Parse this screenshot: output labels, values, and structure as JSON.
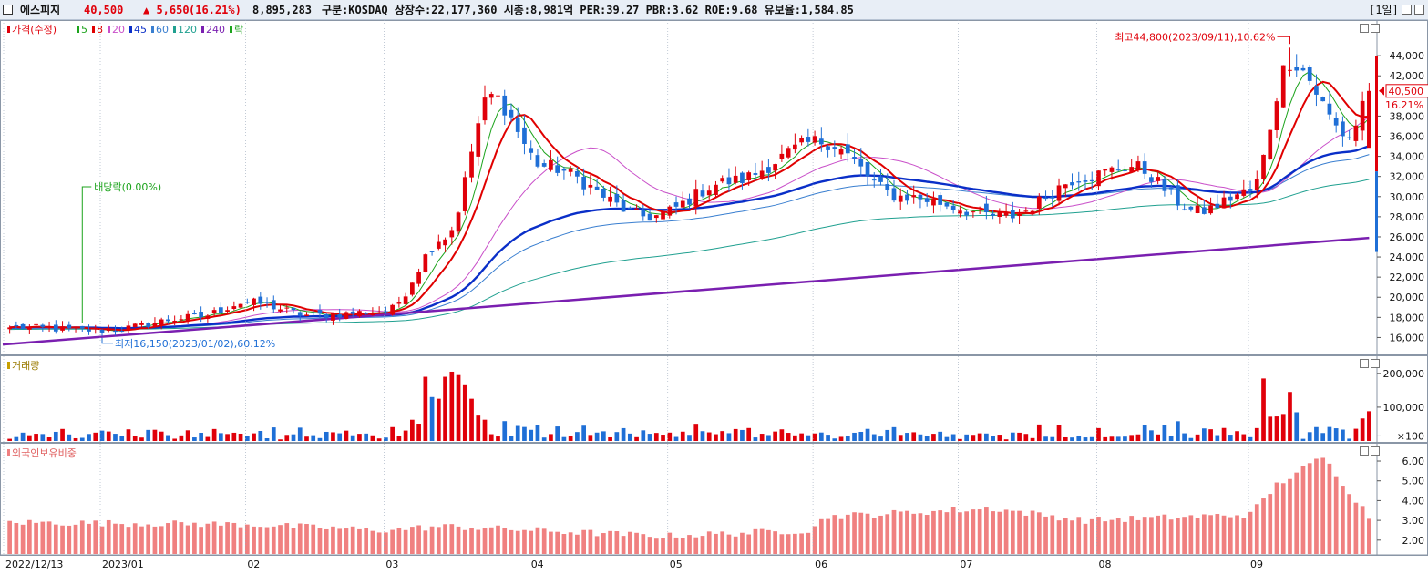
{
  "header": {
    "name": "에스피지",
    "price": "40,500",
    "change": "▲ 5,650",
    "change_pct": "(16.21%)",
    "volume": "8,895,283",
    "info": "구분:KOSDAQ 상장수:22,177,360 시총:8,981억 PER:39.27 PBR:3.62 ROE:9.68 유보율:1,584.85",
    "period": "[1일]"
  },
  "colors": {
    "up": "#e0000a",
    "down": "#1f6fd6",
    "ma5": "#1ca31c",
    "ma8": "#e00000",
    "ma20": "#c94fc9",
    "ma45": "#0a2fc8",
    "ma60": "#3a7fd0",
    "ma120": "#20a090",
    "ma240": "#7a1fb0",
    "foreign": "#f08080"
  },
  "legends": {
    "price": [
      {
        "text": "가격(수정)",
        "color": "#e0000a"
      },
      {
        "text": "5",
        "color": "#1ca31c"
      },
      {
        "text": "8",
        "color": "#e00000"
      },
      {
        "text": "20",
        "color": "#c94fc9"
      },
      {
        "text": "45",
        "color": "#0a2fc8"
      },
      {
        "text": "60",
        "color": "#3a7fd0"
      },
      {
        "text": "120",
        "color": "#20a090"
      },
      {
        "text": "240",
        "color": "#7a1fb0"
      },
      {
        "text": "락",
        "color": "#1ca31c"
      }
    ],
    "volume": "거래량",
    "foreign": "외국인보유비중"
  },
  "annotations": {
    "high": "최고44,800(2023/09/11),10.62%",
    "low": "최저16,150(2023/01/02),60.12%",
    "dividend": "배당락(0.00%)",
    "last_price": "40,500",
    "last_pct": "16.21%"
  },
  "chart_data": [
    {
      "type": "candlestick",
      "panel": "price",
      "ylim": [
        14500,
        47000
      ],
      "yticks": [
        "16,000",
        "18,000",
        "20,000",
        "22,000",
        "24,000",
        "26,000",
        "28,000",
        "30,000",
        "32,000",
        "34,000",
        "36,000",
        "38,000",
        "42,000",
        "44,000"
      ],
      "anchors": [
        {
          "date": "2022/12/13",
          "close": 17000
        },
        {
          "date": "2023/01/02",
          "close": 16700
        },
        {
          "date": "2023/01/20",
          "close": 18000
        },
        {
          "date": "2023/02/01",
          "close": 19500
        },
        {
          "date": "2023/02/15",
          "close": 18200
        },
        {
          "date": "2023/03/02",
          "close": 18600
        },
        {
          "date": "2023/03/15",
          "close": 26000
        },
        {
          "date": "2023/03/24",
          "close": 40000
        },
        {
          "date": "2023/04/05",
          "close": 33000
        },
        {
          "date": "2023/04/27",
          "close": 28000
        },
        {
          "date": "2023/05/15",
          "close": 31500
        },
        {
          "date": "2023/06/02",
          "close": 35500
        },
        {
          "date": "2023/06/20",
          "close": 30000
        },
        {
          "date": "2023/07/12",
          "close": 28000
        },
        {
          "date": "2023/07/28",
          "close": 32000
        },
        {
          "date": "2023/08/08",
          "close": 33000
        },
        {
          "date": "2023/08/22",
          "close": 28500
        },
        {
          "date": "2023/09/01",
          "close": 30500
        },
        {
          "date": "2023/09/11",
          "close": 43500
        },
        {
          "date": "2023/09/22",
          "close": 36000
        },
        {
          "date": "2023/09/27",
          "close": 40500
        }
      ],
      "ma240": [
        [
          17000,
          15300
        ],
        [
          2023.09,
          25900
        ]
      ],
      "high": 44800,
      "low": 16150,
      "last": 40500
    },
    {
      "type": "bar",
      "panel": "volume",
      "ylim": [
        0,
        240000
      ],
      "yticks": [
        "200,000",
        "100,000",
        "×100"
      ]
    },
    {
      "type": "bar",
      "panel": "foreign",
      "ylim": [
        1.3,
        6.6
      ],
      "yticks": [
        "6.00",
        "5.00",
        "4.00",
        "3.00",
        "2.00"
      ]
    }
  ],
  "x_labels": [
    "2022/12/13",
    "2023/01",
    "02",
    "03",
    "04",
    "05",
    "06",
    "07",
    "08",
    "09"
  ]
}
